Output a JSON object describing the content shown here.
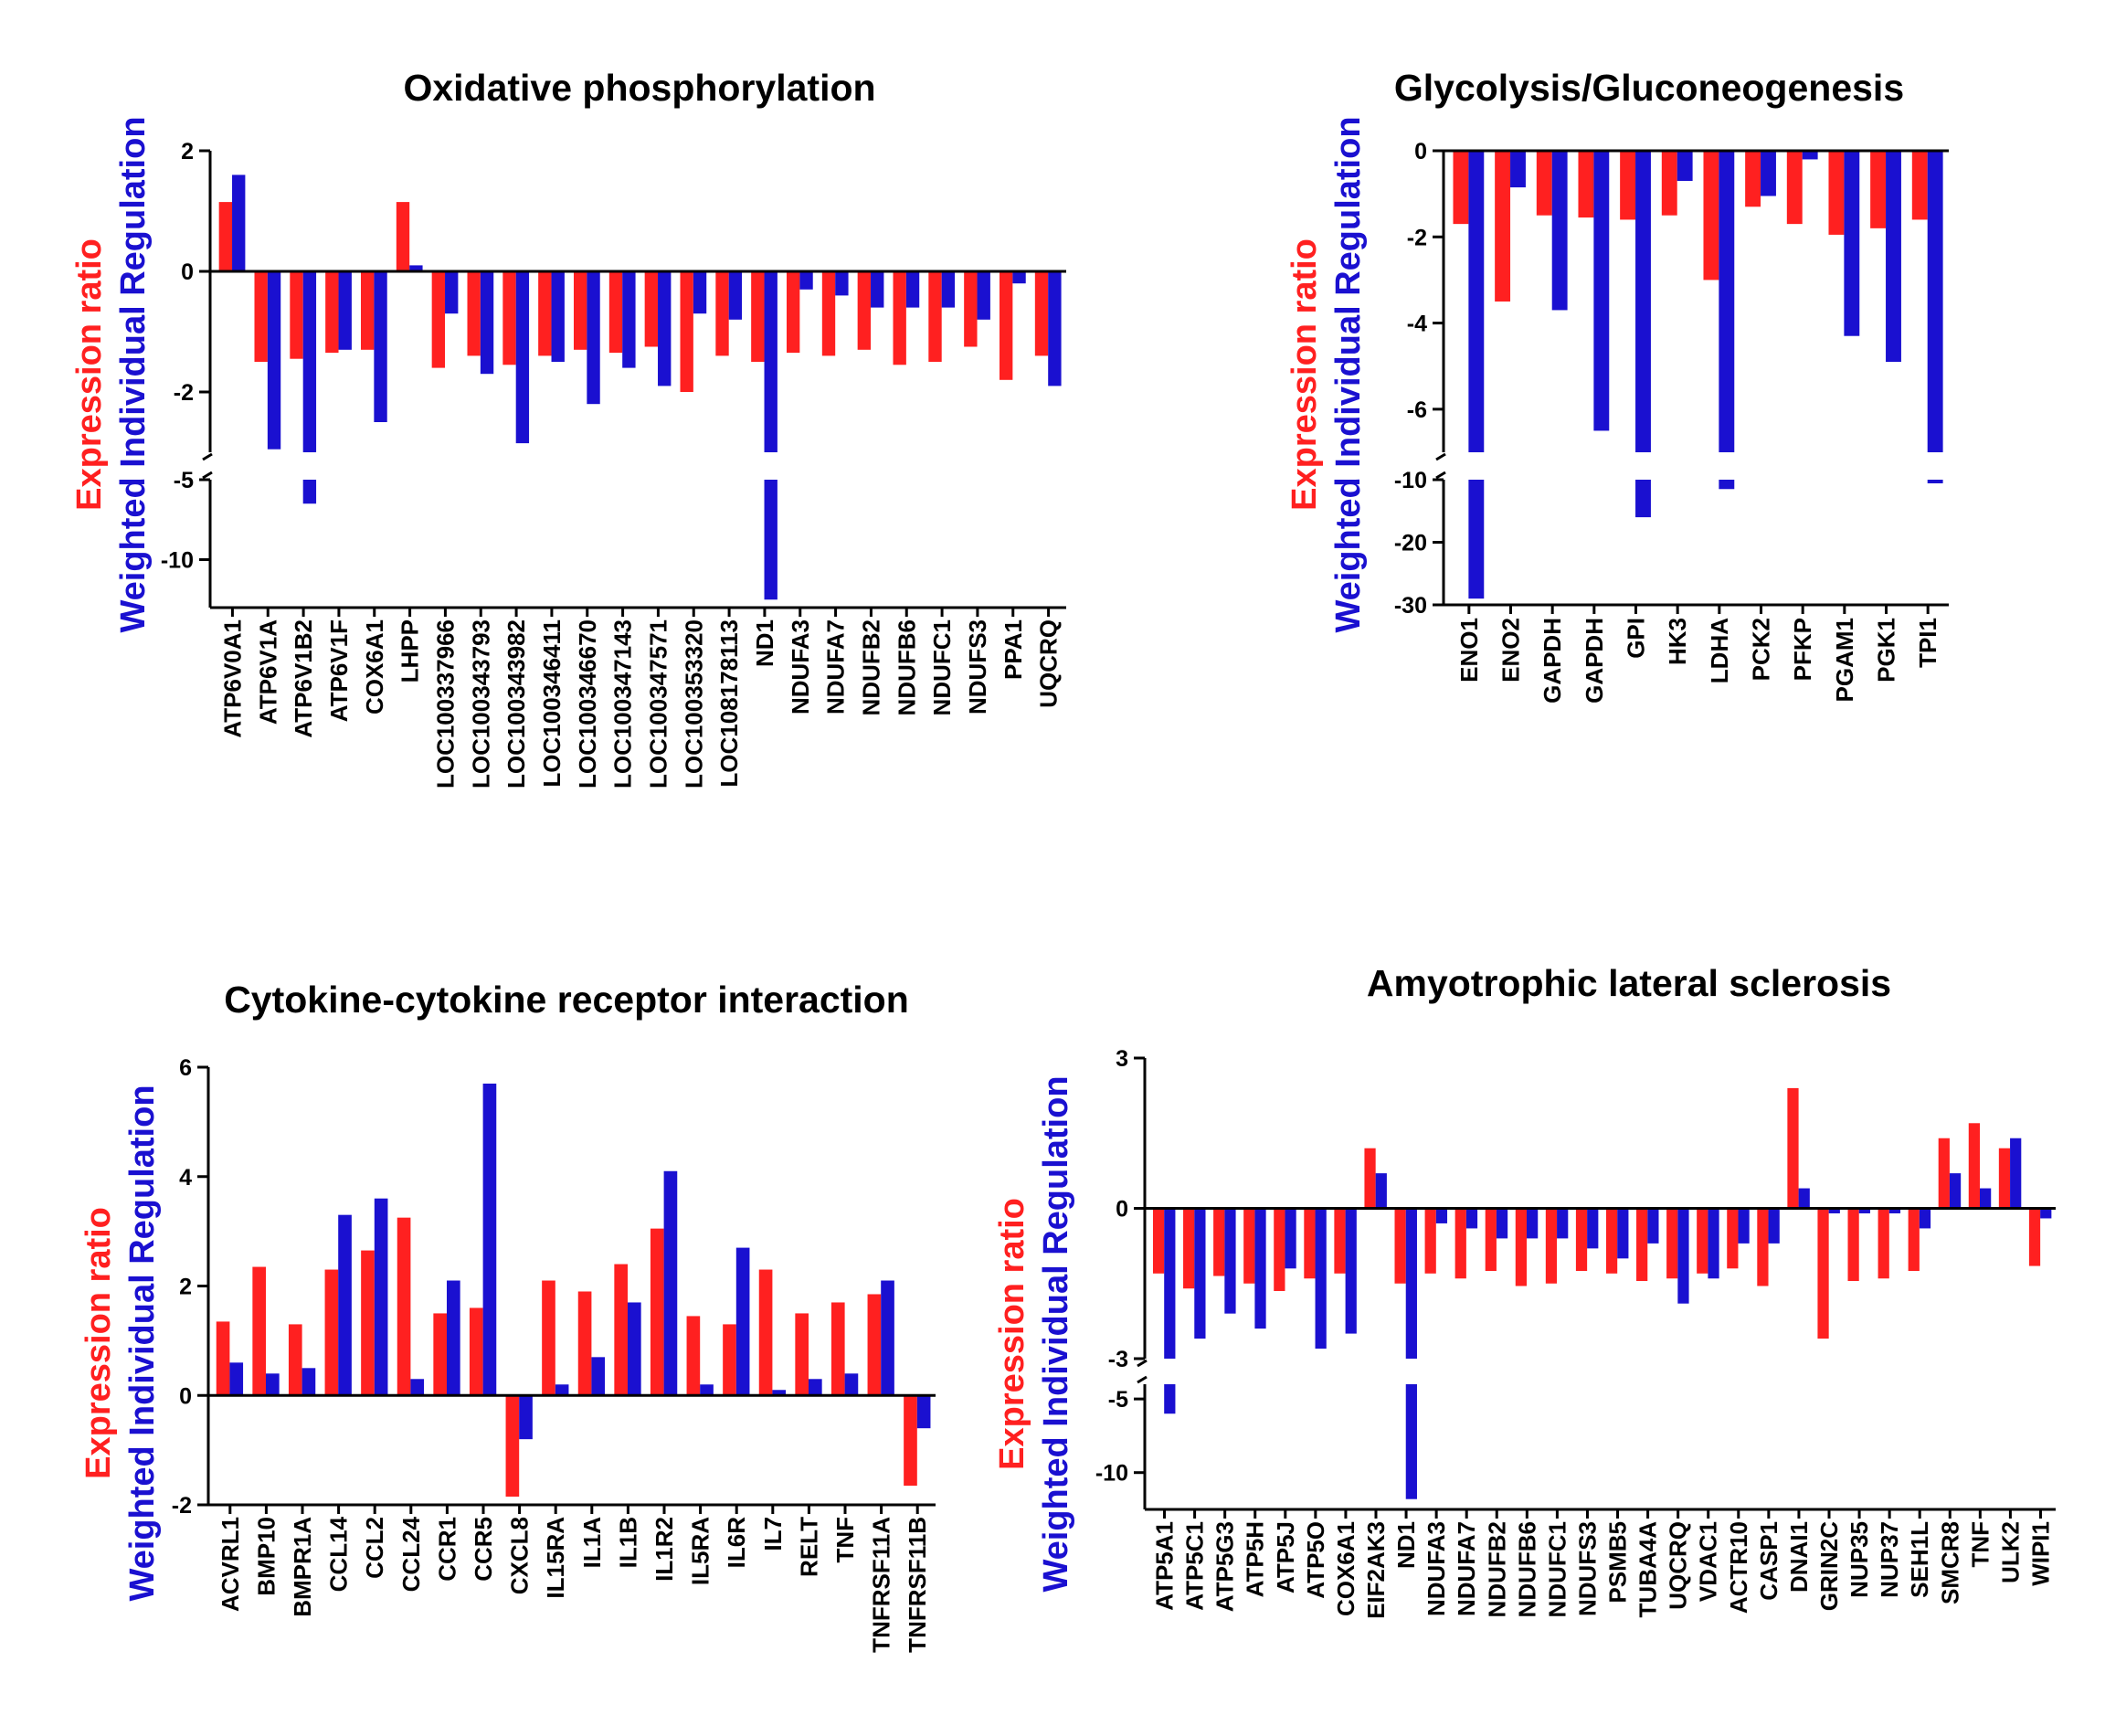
{
  "colors": {
    "expression": "#ff2020",
    "weighted": "#1a10d0",
    "axis": "#000000"
  },
  "legend_labels": {
    "expression": "Expression ratio",
    "weighted": "Weighted Individual Regulation"
  },
  "chart_data": [
    {
      "type": "bar",
      "title": "Oxidative phosphorylation",
      "ylabel_expression": "Expression ratio",
      "ylabel_weighted": "Weighted Individual Regulation",
      "ylim_upper": [
        -3,
        2
      ],
      "ylim_lower": [
        -13,
        -5
      ],
      "yticks": [
        2,
        0,
        -2,
        -5,
        -10
      ],
      "grid": false,
      "categories": [
        "ATP6V0A1",
        "ATP6V1A",
        "ATP6V1B2",
        "ATP6V1F",
        "COX6A1",
        "LHPP",
        "LOC100337966",
        "LOC100343793",
        "LOC100343982",
        "LOC100346411",
        "LOC100346670",
        "LOC100347143",
        "LOC100347571",
        "LOC100353320",
        "LOC108178113",
        "ND1",
        "NDUFA3",
        "NDUFA7",
        "NDUFB2",
        "NDUFB6",
        "NDUFC1",
        "NDUFS3",
        "PPA1",
        "UQCRQ"
      ],
      "series": [
        {
          "name": "Expression ratio",
          "values": [
            1.15,
            -1.5,
            -1.45,
            -1.35,
            -1.3,
            1.15,
            -1.6,
            -1.4,
            -1.55,
            -1.4,
            -1.3,
            -1.35,
            -1.25,
            -2.0,
            -1.4,
            -1.5,
            -1.35,
            -1.4,
            -1.3,
            -1.55,
            -1.5,
            -1.25,
            -1.8,
            -1.4
          ]
        },
        {
          "name": "Weighted Individual Regulation",
          "values": [
            1.6,
            -2.95,
            -6.5,
            -1.3,
            -2.5,
            0.1,
            -0.7,
            -1.7,
            -2.85,
            -1.5,
            -2.2,
            -1.6,
            -1.9,
            -0.7,
            -0.8,
            -12.5,
            -0.3,
            -0.4,
            -0.6,
            -0.6,
            -0.6,
            -0.8,
            -0.2,
            -1.9
          ]
        }
      ]
    },
    {
      "type": "bar",
      "title": "Glycolysis/Gluconeogenesis",
      "ylabel_expression": "Expression ratio",
      "ylabel_weighted": "Weighted Individual Regulation",
      "ylim_upper": [
        -7,
        0
      ],
      "ylim_lower": [
        -30,
        -10
      ],
      "yticks": [
        0,
        -2,
        -4,
        -6,
        -10,
        -20,
        -30
      ],
      "grid": false,
      "categories": [
        "ENO1",
        "ENO2",
        "GAPDH",
        "GAPDH",
        "GPI",
        "HK3",
        "LDHA",
        "PCK2",
        "PFKP",
        "PGAM1",
        "PGK1",
        "TPI1"
      ],
      "series": [
        {
          "name": "Expression ratio",
          "values": [
            -1.7,
            -3.5,
            -1.5,
            -1.55,
            -1.6,
            -1.5,
            -3.0,
            -1.3,
            -1.7,
            -1.95,
            -1.8,
            -1.6
          ]
        },
        {
          "name": "Weighted Individual Regulation",
          "values": [
            -29,
            -0.85,
            -3.7,
            -6.5,
            -16,
            -0.7,
            -11.5,
            -1.05,
            -0.2,
            -4.3,
            -4.9,
            -10.5
          ]
        }
      ]
    },
    {
      "type": "bar",
      "title": "Cytokine-cytokine receptor interaction",
      "ylabel_expression": "Expression ratio",
      "ylabel_weighted": "Weighted Individual Regulation",
      "ylim": [
        -2,
        6
      ],
      "yticks": [
        6,
        4,
        2,
        0,
        -2
      ],
      "grid": false,
      "categories": [
        "ACVRL1",
        "BMP10",
        "BMPR1A",
        "CCL14",
        "CCL2",
        "CCL24",
        "CCR1",
        "CCR5",
        "CXCL8",
        "IL15RA",
        "IL1A",
        "IL1B",
        "IL1R2",
        "IL5RA",
        "IL6R",
        "IL7",
        "RELT",
        "TNF",
        "TNFRSF11A",
        "TNFRSF11B"
      ],
      "series": [
        {
          "name": "Expression ratio",
          "values": [
            1.35,
            2.35,
            1.3,
            2.3,
            2.65,
            3.25,
            1.5,
            1.6,
            -1.85,
            2.1,
            1.9,
            2.4,
            3.05,
            1.45,
            1.3,
            2.3,
            1.5,
            1.7,
            1.85,
            -1.65
          ]
        },
        {
          "name": "Weighted Individual Regulation",
          "values": [
            0.6,
            0.4,
            0.5,
            3.3,
            3.6,
            0.3,
            2.1,
            5.7,
            -0.8,
            0.2,
            0.7,
            1.7,
            4.1,
            0.2,
            2.7,
            0.1,
            0.3,
            0.4,
            2.1,
            -0.6
          ]
        }
      ]
    },
    {
      "type": "bar",
      "title": "Amyotrophic lateral sclerosis",
      "ylabel_expression": "Expression ratio",
      "ylabel_weighted": "Weighted Individual Regulation",
      "ylim_upper": [
        -3,
        3
      ],
      "ylim_lower": [
        -12.5,
        -4
      ],
      "yticks": [
        3,
        0,
        -3,
        -5,
        -10
      ],
      "grid": false,
      "categories": [
        "ATP5A1",
        "ATP5C1",
        "ATP5G3",
        "ATP5H",
        "ATP5J",
        "ATP5O",
        "COX6A1",
        "EIF2AK3",
        "ND1",
        "NDUFA3",
        "NDUFA7",
        "NDUFB2",
        "NDUFB6",
        "NDUFC1",
        "NDUFS3",
        "PSMB5",
        "TUBA4A",
        "UQCRQ",
        "VDAC1",
        "ACTR10",
        "CASP1",
        "DNAI1",
        "GRIN2C",
        "NUP35",
        "NUP37",
        "SEH1L",
        "SMCR8",
        "TNF",
        "ULK2",
        "WIPI1"
      ],
      "series": [
        {
          "name": "Expression ratio",
          "values": [
            -1.3,
            -1.6,
            -1.35,
            -1.5,
            -1.65,
            -1.4,
            -1.3,
            1.2,
            -1.5,
            -1.3,
            -1.4,
            -1.25,
            -1.55,
            -1.5,
            -1.25,
            -1.3,
            -1.45,
            -1.4,
            -1.3,
            -1.2,
            -1.55,
            2.4,
            -2.6,
            -1.45,
            -1.4,
            -1.25,
            1.4,
            1.7,
            1.2,
            -1.15
          ]
        },
        {
          "name": "Weighted Individual Regulation",
          "values": [
            -6.0,
            -2.6,
            -2.1,
            -2.4,
            -1.2,
            -2.8,
            -2.5,
            0.7,
            -11.8,
            -0.3,
            -0.4,
            -0.6,
            -0.6,
            -0.6,
            -0.8,
            -1.0,
            -0.7,
            -1.9,
            -1.4,
            -0.7,
            -0.7,
            0.4,
            -0.1,
            -0.1,
            -0.1,
            -0.4,
            0.7,
            0.4,
            1.4,
            -0.2
          ]
        }
      ]
    }
  ]
}
